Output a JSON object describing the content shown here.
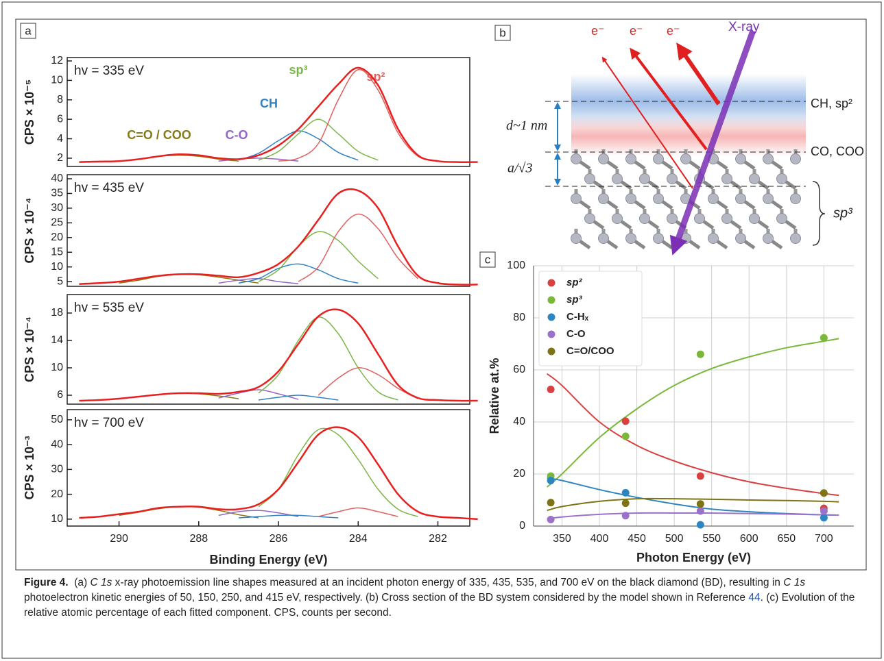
{
  "panel_labels": [
    "a",
    "b",
    "c"
  ],
  "chart_data": [
    {
      "type": "line",
      "annotation": "hv = 335 eV",
      "ylabel": "CPS × 10⁻⁵",
      "xlim": [
        291.3,
        281.2
      ],
      "ylim": [
        1.15,
        12.35
      ],
      "yticks": [
        2,
        4,
        6,
        8,
        10,
        12
      ],
      "series": [
        {
          "color": "#e8201f",
          "x": [
            291,
            290.5,
            290,
            289.5,
            289,
            288.5,
            288,
            287.5,
            287,
            286.5,
            286,
            285.5,
            285,
            284.5,
            284,
            283.5,
            283,
            282.5,
            282,
            281.5,
            281
          ],
          "values": [
            1.6,
            1.65,
            1.7,
            1.9,
            2.2,
            2.4,
            2.3,
            2.0,
            1.9,
            2.3,
            3.3,
            5.0,
            7.3,
            9.6,
            11.3,
            9.5,
            5.0,
            2.3,
            1.7,
            1.6,
            1.6
          ]
        },
        {
          "name": "sp²",
          "color": "#e06060",
          "x": [
            286,
            285.5,
            285,
            284.5,
            284,
            283.5,
            283,
            282.5,
            282
          ],
          "values": [
            1.7,
            2.0,
            3.5,
            8.0,
            11.1,
            9.0,
            4.6,
            2.2,
            1.7
          ]
        },
        {
          "name": "sp³",
          "color": "#7ab648",
          "x": [
            286.5,
            286,
            285.5,
            285,
            284.5,
            284,
            283.5
          ],
          "values": [
            1.8,
            2.7,
            4.5,
            6.0,
            4.5,
            2.7,
            1.8
          ]
        },
        {
          "name": "CH",
          "color": "#2f82c4",
          "x": [
            287,
            286.5,
            286,
            285.5,
            285,
            284.5,
            284
          ],
          "values": [
            1.8,
            2.5,
            3.8,
            4.8,
            4.0,
            2.6,
            1.8
          ]
        },
        {
          "name": "C-O",
          "color": "#9466c4",
          "x": [
            287.5,
            287,
            286.5,
            286,
            285.5
          ],
          "values": [
            1.7,
            1.9,
            2.0,
            1.9,
            1.7
          ]
        },
        {
          "name": "C=O / COO",
          "color": "#857a16",
          "x": [
            290,
            289.5,
            289,
            288.5,
            288,
            287.5,
            287
          ],
          "values": [
            1.7,
            1.9,
            2.2,
            2.3,
            2.2,
            1.9,
            1.7
          ]
        }
      ]
    },
    {
      "type": "line",
      "annotation": "hv = 435 eV",
      "ylabel": "CPS × 10⁻⁴",
      "xlim": [
        291.3,
        281.2
      ],
      "ylim": [
        3.4,
        41.4
      ],
      "yticks": [
        5,
        10,
        15,
        20,
        25,
        30,
        35,
        40
      ],
      "series": [
        {
          "color": "#e8201f",
          "x": [
            291,
            290.5,
            290,
            289.5,
            289,
            288.5,
            288,
            287.5,
            287,
            286.5,
            286,
            285.5,
            285,
            284.5,
            284,
            283.5,
            283,
            282.5,
            282,
            281.5,
            281
          ],
          "values": [
            4.2,
            4.5,
            5,
            6,
            7,
            7.5,
            7.5,
            7,
            6.5,
            8,
            11,
            17,
            26,
            35,
            36,
            30,
            17,
            7,
            4.5,
            4,
            4
          ]
        },
        {
          "color": "#e06060",
          "x": [
            285.5,
            285,
            284.5,
            284,
            283.5,
            283,
            282.5
          ],
          "values": [
            5,
            10,
            22,
            28,
            23,
            13,
            6
          ]
        },
        {
          "color": "#7ab648",
          "x": [
            286.5,
            286,
            285.5,
            285,
            284.5,
            284,
            283.5
          ],
          "values": [
            5,
            9,
            17,
            22,
            19,
            12,
            6
          ]
        },
        {
          "color": "#2f82c4",
          "x": [
            287,
            286.5,
            286,
            285.5,
            285,
            284.5,
            284
          ],
          "values": [
            4.5,
            6,
            9.5,
            11,
            9,
            6,
            4.5
          ]
        },
        {
          "color": "#9466c4",
          "x": [
            287.5,
            287,
            286.5,
            286,
            285.5
          ],
          "values": [
            4.5,
            5.5,
            6,
            5,
            4.3
          ]
        },
        {
          "color": "#857a16",
          "x": [
            290,
            289.5,
            289,
            288.5,
            288,
            287.5,
            287,
            286.5
          ],
          "values": [
            4.5,
            5.5,
            6.8,
            7.4,
            7.3,
            6.5,
            5.5,
            4.5
          ]
        }
      ]
    },
    {
      "type": "line",
      "annotation": "hv = 535 eV",
      "ylabel": "CPS × 10⁻⁴",
      "xlim": [
        291.3,
        281.2
      ],
      "ylim": [
        4.7,
        20.7
      ],
      "yticks": [
        6,
        10,
        14,
        18
      ],
      "series": [
        {
          "color": "#e8201f",
          "x": [
            291,
            290.5,
            290,
            289.5,
            289,
            288.5,
            288,
            287.5,
            287,
            286.5,
            286,
            285.5,
            285,
            284.5,
            284,
            283.5,
            283,
            282.5,
            282,
            281.5,
            281
          ],
          "values": [
            5.2,
            5.3,
            5.5,
            5.8,
            6.1,
            6.3,
            6.3,
            6.2,
            6.5,
            7.2,
            9.5,
            13.5,
            17.5,
            18.5,
            16.5,
            12,
            7.5,
            5.6,
            5.3,
            5.2,
            5.2
          ]
        },
        {
          "color": "#e06060",
          "x": [
            285,
            284.5,
            284,
            283.5,
            283,
            282.5
          ],
          "values": [
            6,
            8.5,
            10,
            9,
            7,
            5.5
          ]
        },
        {
          "color": "#7ab648",
          "x": [
            286.5,
            286,
            285.5,
            285,
            284.5,
            284,
            283.5,
            283
          ],
          "values": [
            6.3,
            9,
            14,
            17.4,
            15,
            10,
            6.5,
            5.3
          ]
        },
        {
          "color": "#2f82c4",
          "x": [
            286.5,
            286,
            285.5,
            285,
            284.5
          ],
          "values": [
            5.3,
            5.7,
            6.0,
            5.7,
            5.3
          ]
        },
        {
          "color": "#9466c4",
          "x": [
            287.5,
            287,
            286.5,
            286,
            285.5
          ],
          "values": [
            5.6,
            6.3,
            6.8,
            6.2,
            5.4
          ]
        },
        {
          "color": "#857a16",
          "x": [
            290,
            289.5,
            289,
            288.5,
            288,
            287.5,
            287
          ],
          "values": [
            5.5,
            5.8,
            6.1,
            6.3,
            6.2,
            5.9,
            5.5
          ]
        }
      ]
    },
    {
      "type": "line",
      "annotation": "hv = 700 eV",
      "ylabel": "CPS × 10⁻³",
      "xlabel": "Binding Energy (eV)",
      "xlim": [
        291.3,
        281.2
      ],
      "ylim": [
        7.2,
        54.1
      ],
      "yticks": [
        10,
        20,
        30,
        40,
        50
      ],
      "xticks": [
        290,
        288,
        286,
        284,
        282
      ],
      "series": [
        {
          "color": "#e8201f",
          "x": [
            291,
            290.5,
            290,
            289.5,
            289,
            288.5,
            288,
            287.5,
            287,
            286.5,
            286,
            285.5,
            285,
            284.5,
            284,
            283.5,
            283,
            282.5,
            282,
            281.5,
            281
          ],
          "values": [
            10.5,
            11,
            12,
            13,
            14.5,
            15,
            15,
            14,
            14,
            16,
            22,
            33,
            44,
            47,
            43,
            32,
            20,
            13,
            11,
            10.5,
            10
          ]
        },
        {
          "color": "#e06060",
          "x": [
            285,
            284.5,
            284,
            283.5,
            283
          ],
          "values": [
            11,
            13,
            14.5,
            13,
            11
          ]
        },
        {
          "color": "#7ab648",
          "x": [
            286.5,
            286,
            285.5,
            285,
            284.5,
            284,
            283.5,
            283,
            282.5
          ],
          "values": [
            15,
            22,
            36,
            46,
            44,
            34,
            22,
            14,
            11
          ]
        },
        {
          "color": "#2f82c4",
          "x": [
            287,
            286.5,
            286,
            285.5,
            285,
            284.5
          ],
          "values": [
            10.5,
            11,
            11.5,
            11.5,
            11,
            10.5
          ]
        },
        {
          "color": "#9466c4",
          "x": [
            287.5,
            287,
            286.5,
            286,
            285.5
          ],
          "values": [
            11.5,
            13,
            13.5,
            12.5,
            11
          ]
        },
        {
          "color": "#857a16",
          "x": [
            290,
            289.5,
            289,
            288.5,
            288,
            287.5,
            287,
            286.5
          ],
          "values": [
            11.5,
            12.8,
            14.2,
            15,
            14.8,
            13.5,
            11.8,
            10.5
          ]
        }
      ]
    },
    {
      "type": "scatter",
      "xlabel": "Photon Energy (eV)",
      "ylabel": "Relative at.%",
      "grid": true,
      "legend": "upper left",
      "xlim": [
        312,
        740
      ],
      "ylim": [
        0,
        100
      ],
      "xticks": [
        350,
        400,
        450,
        500,
        550,
        600,
        650,
        700
      ],
      "yticks": [
        0,
        20,
        40,
        60,
        80,
        100
      ],
      "x": [
        335,
        435,
        535,
        700
      ],
      "series": [
        {
          "name": "sp²",
          "color": "#d94040",
          "values": [
            52.5,
            40.3,
            19.2,
            6.8
          ],
          "fit": {
            "x": [
              330,
              350,
              400,
              450,
              500,
              550,
              600,
              650,
              700,
              720
            ],
            "values": [
              58.5,
              54,
              40,
              31,
              25,
              20.5,
              17,
              14.5,
              12.5,
              11.8
            ]
          }
        },
        {
          "name": "sp³",
          "color": "#7ab83a",
          "values": [
            19.2,
            34.5,
            66,
            72.3
          ],
          "fit": {
            "x": [
              330,
              350,
              400,
              450,
              500,
              550,
              600,
              650,
              700,
              720
            ],
            "values": [
              15,
              20,
              34,
              45,
              54,
              60.5,
              65,
              68.5,
              71,
              72
            ]
          }
        },
        {
          "name": "C-Hₓ",
          "color": "#2e86c1",
          "values": [
            17.5,
            12.8,
            0.5,
            3.2
          ],
          "fit": {
            "x": [
              330,
              350,
              400,
              450,
              500,
              550,
              600,
              650,
              700,
              720
            ],
            "values": [
              18.5,
              17.5,
              14,
              11,
              8.5,
              6.5,
              5.5,
              4.8,
              4.3,
              4.2
            ]
          }
        },
        {
          "name": "C-O",
          "color": "#9b72c9",
          "values": [
            2.5,
            4,
            5.8,
            5.8
          ],
          "fit": {
            "x": [
              330,
              350,
              400,
              450,
              500,
              550,
              600,
              650,
              700,
              720
            ],
            "values": [
              2.8,
              3.5,
              4.5,
              5,
              5,
              5,
              4.8,
              4.6,
              4.3,
              4.2
            ]
          }
        },
        {
          "name": "C=O/COO",
          "color": "#7d7416",
          "values": [
            9,
            8.8,
            8.5,
            12.7
          ],
          "fit": {
            "x": [
              330,
              350,
              400,
              450,
              500,
              550,
              600,
              650,
              700,
              720
            ],
            "values": [
              6,
              7.5,
              9.5,
              10.5,
              10.5,
              10.3,
              10,
              9.8,
              9.5,
              9.3
            ]
          }
        }
      ]
    }
  ],
  "diagram": {
    "electrons": [
      "e⁻",
      "e⁻",
      "e⁻"
    ],
    "xray": "X-ray",
    "d_label": "d~1 nm",
    "a_label": "a/√3",
    "top_layer": "CH,  sp²",
    "mid_layer": "CO, COO",
    "bulk": "sp³"
  },
  "caption": {
    "label": "Figure 4.",
    "segments": [
      "(a) ",
      "C 1s",
      " x-ray photoemission line shapes measured at an incident photon energy of 335, 435, 535, and 700 eV on the black diamond (BD), resulting in ",
      "C 1s",
      " photoelectron kinetic energies of 50, 150, 250, and 415 eV, respectively. (b) Cross section of the BD system considered by the model shown in Reference ",
      "44",
      ". (c) Evolution of the relative atomic percentage of each fitted component. CPS, counts per second."
    ]
  }
}
